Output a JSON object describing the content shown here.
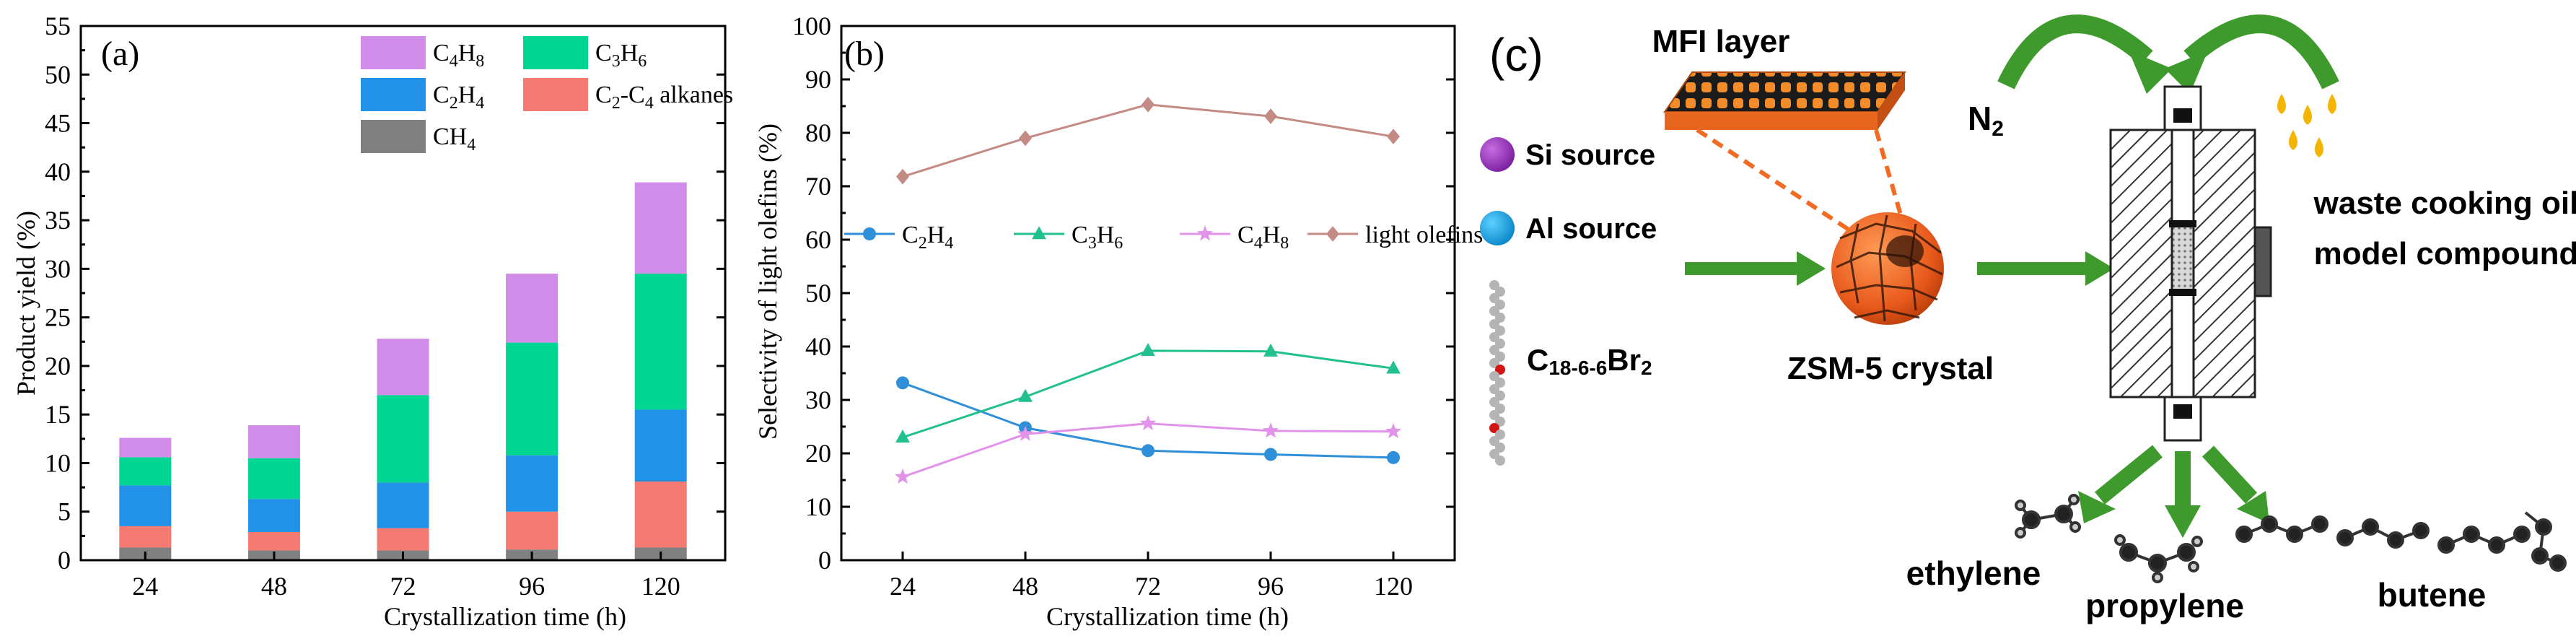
{
  "chart_data": [
    {
      "id": "a",
      "type": "bar",
      "stacked": true,
      "panel_label": "(a)",
      "xlabel": "Crystallization time (h)",
      "ylabel": "Product yield (%)",
      "ylim": [
        0,
        55
      ],
      "yticks": [
        0,
        5,
        10,
        15,
        20,
        25,
        30,
        35,
        40,
        45,
        50,
        55
      ],
      "categories": [
        "24",
        "48",
        "72",
        "96",
        "120"
      ],
      "series": [
        {
          "name": "CH4",
          "label_base": "CH",
          "label_sub": "4",
          "color": "#808080",
          "values": [
            1.3,
            1.0,
            1.0,
            1.1,
            1.3
          ]
        },
        {
          "name": "C2-C4 alkanes",
          "label_base": "C",
          "label_sub": "2",
          "label_rest": "-C",
          "label_sub2": "4",
          "label_tail": " alkanes",
          "color": "#f47a72",
          "values": [
            2.2,
            1.9,
            2.3,
            3.9,
            6.8
          ]
        },
        {
          "name": "C2H4",
          "label_base": "C",
          "label_sub": "2",
          "label_rest": "H",
          "label_sub2": "4",
          "color": "#2291e8",
          "values": [
            4.2,
            3.4,
            4.7,
            5.8,
            7.4
          ]
        },
        {
          "name": "C3H6",
          "label_base": "C",
          "label_sub": "3",
          "label_rest": "H",
          "label_sub2": "6",
          "color": "#00d691",
          "values": [
            2.9,
            4.2,
            9.0,
            11.6,
            14.0
          ]
        },
        {
          "name": "C4H8",
          "label_base": "C",
          "label_sub": "4",
          "label_rest": "H",
          "label_sub2": "8",
          "color": "#d18be9",
          "values": [
            2.0,
            3.4,
            5.8,
            7.1,
            9.4
          ]
        }
      ],
      "legend_order": [
        "C4H8",
        "C3H6",
        "C2H4",
        "C2-C4 alkanes",
        "CH4"
      ],
      "legend_position": "top-right"
    },
    {
      "id": "b",
      "type": "line",
      "panel_label": "(b)",
      "xlabel": "Crystallization time (h)",
      "ylabel": "Selectivity of light olefins (%)",
      "ylim": [
        0,
        100
      ],
      "yticks": [
        0,
        10,
        20,
        30,
        40,
        50,
        60,
        70,
        80,
        90,
        100
      ],
      "x": [
        24,
        48,
        72,
        96,
        120
      ],
      "xticks": [
        "24",
        "48",
        "72",
        "96",
        "120"
      ],
      "series": [
        {
          "name": "C2H4",
          "label_base": "C",
          "label_sub": "2",
          "label_rest": "H",
          "label_sub2": "4",
          "color": "#2f8fd8",
          "marker": "circle",
          "values": [
            33.2,
            24.8,
            20.5,
            19.8,
            19.2
          ]
        },
        {
          "name": "C3H6",
          "label_base": "C",
          "label_sub": "3",
          "label_rest": "H",
          "label_sub2": "6",
          "color": "#22c08e",
          "marker": "triangle",
          "values": [
            23.0,
            30.6,
            39.2,
            39.1,
            35.9
          ]
        },
        {
          "name": "C4H8",
          "label_base": "C",
          "label_sub": "4",
          "label_rest": "H",
          "label_sub2": "8",
          "color": "#e193ea",
          "marker": "star",
          "values": [
            15.6,
            23.6,
            25.6,
            24.2,
            24.1
          ]
        },
        {
          "name": "light olefins",
          "label_base": "light olefins",
          "color": "#c48a84",
          "marker": "diamond",
          "values": [
            71.8,
            79.0,
            85.3,
            83.1,
            79.3
          ]
        }
      ],
      "legend_position": "middle"
    }
  ],
  "schematic": {
    "panel_label": "(c)",
    "mfi_layer": "MFI layer",
    "si_source": "Si source",
    "al_source": "Al source",
    "template": {
      "c": "C",
      "sub": "18-6-6",
      "br": "Br",
      "sub2": "2"
    },
    "crystal": "ZSM-5 crystal",
    "n2": {
      "base": "N",
      "sub": "2"
    },
    "oil_line1": "waste cooking oil",
    "oil_line2": "model compound",
    "products": [
      "ethylene",
      "propylene",
      "butene"
    ],
    "colors": {
      "si": "#a03cc6",
      "al": "#10a8e8",
      "arrow": "#3f9a2d",
      "orange": "#f26b22",
      "drop": "#f4b400"
    }
  }
}
